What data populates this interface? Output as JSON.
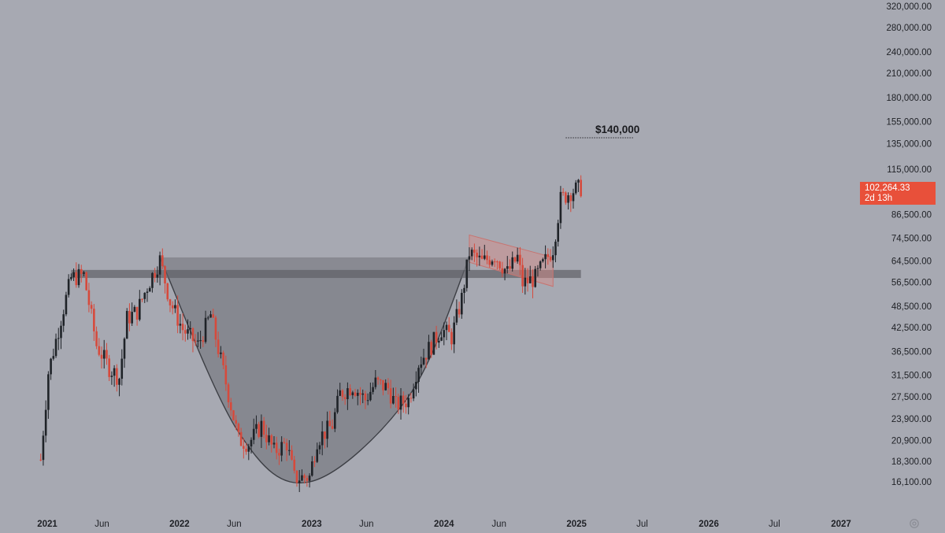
{
  "chart_data": {
    "type": "candlestick",
    "y_axis": {
      "ticks": [
        320000,
        280000,
        240000,
        210000,
        180000,
        155000,
        135000,
        115000,
        86500,
        74500,
        64500,
        56500,
        48500,
        42500,
        36500,
        31500,
        27500,
        23900,
        20900,
        18300,
        16100
      ],
      "tick_labels": [
        "320,000.00",
        "280,000.00",
        "240,000.00",
        "210,000.00",
        "180,000.00",
        "155,000.00",
        "135,000.00",
        "115,000.00",
        "86,500.00",
        "74,500.00",
        "64,500.00",
        "56,500.00",
        "48,500.00",
        "42,500.00",
        "36,500.00",
        "31,500.00",
        "27,500.00",
        "23,900.00",
        "20,900.00",
        "18,300.00",
        "16,100.00"
      ],
      "scale": "log"
    },
    "x_axis": {
      "range": [
        "2020-12-14",
        "2027-04-01"
      ],
      "ticks": [
        {
          "date": "2021-01-01",
          "label": "2021",
          "year": true
        },
        {
          "date": "2021-06-01",
          "label": "Jun",
          "year": false
        },
        {
          "date": "2022-01-01",
          "label": "2022",
          "year": true
        },
        {
          "date": "2022-06-01",
          "label": "Jun",
          "year": false
        },
        {
          "date": "2023-01-01",
          "label": "2023",
          "year": true
        },
        {
          "date": "2023-06-01",
          "label": "Jun",
          "year": false
        },
        {
          "date": "2024-01-01",
          "label": "2024",
          "year": true
        },
        {
          "date": "2024-06-01",
          "label": "Jun",
          "year": false
        },
        {
          "date": "2025-01-01",
          "label": "2025",
          "year": true
        },
        {
          "date": "2025-07-01",
          "label": "Jul",
          "year": false
        },
        {
          "date": "2026-01-01",
          "label": "2026",
          "year": true
        },
        {
          "date": "2026-07-01",
          "label": "Jul",
          "year": false
        },
        {
          "date": "2027-01-01",
          "label": "2027",
          "year": true
        }
      ]
    },
    "candle_path": [
      [
        "2020-12-14",
        18500
      ],
      [
        "2021-01-04",
        32000
      ],
      [
        "2021-02-08",
        45000
      ],
      [
        "2021-03-08",
        58000
      ],
      [
        "2021-04-12",
        59000
      ],
      [
        "2021-05-17",
        38000
      ],
      [
        "2021-06-21",
        33000
      ],
      [
        "2021-07-19",
        31000
      ],
      [
        "2021-08-09",
        45000
      ],
      [
        "2021-09-06",
        47000
      ],
      [
        "2021-10-04",
        55000
      ],
      [
        "2021-10-25",
        61000
      ],
      [
        "2021-11-08",
        65000
      ],
      [
        "2021-12-06",
        50000
      ],
      [
        "2022-01-10",
        42000
      ],
      [
        "2022-02-21",
        38000
      ],
      [
        "2022-03-28",
        46000
      ],
      [
        "2022-05-09",
        30000
      ],
      [
        "2022-06-13",
        21000
      ],
      [
        "2022-07-11",
        20500
      ],
      [
        "2022-08-15",
        23000
      ],
      [
        "2022-09-19",
        19500
      ],
      [
        "2022-10-24",
        20500
      ],
      [
        "2022-11-14",
        16500
      ],
      [
        "2022-12-26",
        16600
      ],
      [
        "2023-01-16",
        21000
      ],
      [
        "2023-02-27",
        23000
      ],
      [
        "2023-03-20",
        28000
      ],
      [
        "2023-04-24",
        29500
      ],
      [
        "2023-05-29",
        27000
      ],
      [
        "2023-06-26",
        30000
      ],
      [
        "2023-07-31",
        29000
      ],
      [
        "2023-08-21",
        26000
      ],
      [
        "2023-09-25",
        27000
      ],
      [
        "2023-10-23",
        34000
      ],
      [
        "2023-11-27",
        38000
      ],
      [
        "2023-12-25",
        42000
      ],
      [
        "2024-01-22",
        40000
      ],
      [
        "2024-02-19",
        51000
      ],
      [
        "2024-03-11",
        68000
      ],
      [
        "2024-04-15",
        64000
      ],
      [
        "2024-05-20",
        67000
      ],
      [
        "2024-06-24",
        60000
      ],
      [
        "2024-07-22",
        66000
      ],
      [
        "2024-08-05",
        56000
      ],
      [
        "2024-09-09",
        58000
      ],
      [
        "2024-09-30",
        63000
      ],
      [
        "2024-10-28",
        70000
      ],
      [
        "2024-11-18",
        95000
      ],
      [
        "2024-12-16",
        100000
      ],
      [
        "2025-01-13",
        102264
      ]
    ],
    "cup_curve": [
      [
        "2021-11-08",
        66000
      ],
      [
        "2022-06-13",
        22000
      ],
      [
        "2022-12-26",
        16100
      ],
      [
        "2023-09-25",
        27500
      ],
      [
        "2024-03-11",
        66000
      ]
    ],
    "resistance_zone": {
      "from": "2021-03-08",
      "to": "2025-01-13",
      "low": 58000,
      "high": 61000
    },
    "cup_rim": {
      "from": "2021-11-08",
      "to": "2024-03-11",
      "y": 66000
    },
    "flag_channel": {
      "upper": [
        [
          "2024-03-11",
          76000
        ],
        [
          "2024-10-28",
          66000
        ]
      ],
      "lower": [
        [
          "2024-03-11",
          64000
        ],
        [
          "2024-10-28",
          55000
        ]
      ]
    },
    "target": {
      "label": "$140,000",
      "value": 140000,
      "from": "2024-12-02",
      "to": "2025-06-09"
    },
    "current_price": {
      "value": 102264.33,
      "label": "102,264.33",
      "countdown": "2d 13h"
    }
  },
  "colors": {
    "background": "#a7a9b2",
    "up_candle": "#1f2328",
    "down_candle": "#d64a3c",
    "price_tag": "#e8503a",
    "cup_fill": "#6b6d74",
    "zone": "#5f6167",
    "channel": "#d98a86"
  },
  "icons": {
    "settings": "settings-gear-icon"
  }
}
